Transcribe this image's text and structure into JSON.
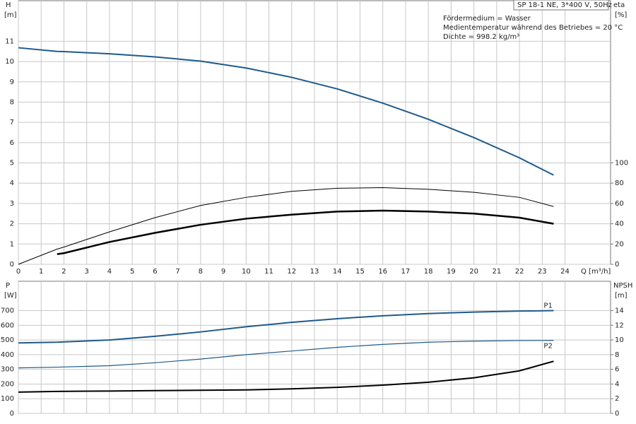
{
  "chart_data": [
    {
      "type": "line",
      "xlim": [
        0,
        26
      ],
      "ylim": [
        0,
        13
      ],
      "y2lim": [
        0,
        260
      ],
      "xticks": [
        0,
        1,
        2,
        3,
        4,
        5,
        6,
        7,
        8,
        9,
        10,
        11,
        12,
        13,
        14,
        15,
        16,
        17,
        18,
        19,
        20,
        21,
        22,
        23,
        24
      ],
      "yticks": [
        0,
        1,
        2,
        3,
        4,
        5,
        6,
        7,
        8,
        9,
        10,
        11
      ],
      "y2ticks": [
        0,
        20,
        40,
        60,
        80,
        100
      ],
      "y_label": "H",
      "y_unit": "[m]",
      "y2_label": "eta",
      "y2_unit": "[%]",
      "x_label": "Q [m³/h]",
      "info_title": "SP 18-1 NE, 3*400 V, 50Hz",
      "info_lines": [
        "Fördermedium = Wasser",
        "Medientemperatur während des Betriebes = 20 °C",
        "Dichte = 998.2 kg/m³"
      ],
      "grid": true,
      "x": [
        0,
        1.7,
        2,
        4,
        6,
        8,
        10,
        12,
        14,
        16,
        18,
        20,
        22,
        23.5
      ],
      "series": [
        {
          "color": "#1f5a8c",
          "line_width": 2,
          "values": [
            10.68,
            10.5,
            10.49,
            10.38,
            10.23,
            10.02,
            9.68,
            9.22,
            8.65,
            7.95,
            7.15,
            6.25,
            5.25,
            4.4
          ]
        },
        {
          "color": "#000000",
          "line_width": 1,
          "axis": "y2",
          "values": [
            0,
            15,
            17,
            32,
            46,
            58,
            66,
            72,
            75,
            75.6,
            74,
            71,
            66,
            57
          ]
        },
        {
          "color": "#000000",
          "line_width": 2.5,
          "axis": "y2",
          "values": [
            null,
            10,
            11,
            22,
            31,
            39,
            45,
            49,
            52,
            53,
            52,
            50,
            46,
            40
          ]
        }
      ]
    },
    {
      "type": "line",
      "xlim": [
        0,
        26
      ],
      "ylim": [
        0,
        900
      ],
      "y2lim": [
        0,
        18
      ],
      "yticks": [
        0,
        100,
        200,
        300,
        400,
        500,
        600,
        700
      ],
      "y2ticks": [
        0,
        2,
        4,
        6,
        8,
        10,
        12,
        14
      ],
      "y_label": "P",
      "y_unit": "[W]",
      "y2_label": "NPSH",
      "y2_unit": "[m]",
      "grid": true,
      "x": [
        0,
        1.7,
        4,
        6,
        8,
        10,
        12,
        14,
        16,
        18,
        20,
        22,
        23.5
      ],
      "series": [
        {
          "name": "P1",
          "color": "#1f5a8c",
          "line_width": 2,
          "values": [
            480,
            485,
            500,
            525,
            555,
            590,
            620,
            645,
            665,
            680,
            690,
            697,
            700
          ]
        },
        {
          "name": "P2",
          "color": "#1f5a8c",
          "line_width": 1.2,
          "values": [
            310,
            315,
            325,
            345,
            370,
            400,
            425,
            450,
            470,
            485,
            492,
            496,
            497
          ]
        },
        {
          "color": "#000000",
          "line_width": 2,
          "axis": "y2",
          "values": [
            2.9,
            3.0,
            3.05,
            3.1,
            3.15,
            3.2,
            3.35,
            3.55,
            3.85,
            4.25,
            4.85,
            5.8,
            7.1
          ]
        }
      ]
    }
  ]
}
